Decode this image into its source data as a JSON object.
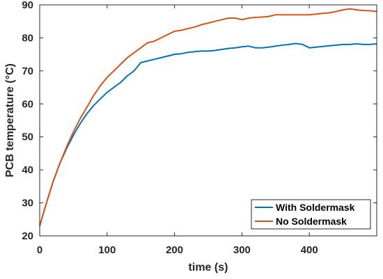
{
  "chart_data": {
    "type": "line",
    "xlabel": "time (s)",
    "ylabel": "PCB temperature (°C)",
    "xlim": [
      0,
      500
    ],
    "ylim": [
      20,
      90
    ],
    "xticks": [
      0,
      100,
      200,
      300,
      400
    ],
    "yticks": [
      20,
      30,
      40,
      50,
      60,
      70,
      80,
      90
    ],
    "grid": false,
    "legend_position": "bottom-right",
    "series": [
      {
        "name": "With Soldermask",
        "color": "#0072BD",
        "x": [
          0,
          10,
          20,
          30,
          40,
          50,
          60,
          70,
          80,
          90,
          100,
          110,
          120,
          130,
          140,
          150,
          160,
          170,
          180,
          190,
          200,
          210,
          220,
          230,
          240,
          250,
          260,
          270,
          280,
          290,
          300,
          310,
          320,
          330,
          340,
          350,
          360,
          370,
          380,
          390,
          400,
          410,
          420,
          430,
          440,
          450,
          460,
          470,
          480,
          490,
          500
        ],
        "values": [
          23.0,
          30.0,
          36.5,
          42.0,
          46.5,
          50.5,
          54.0,
          57.0,
          59.5,
          61.5,
          63.5,
          65.0,
          66.5,
          68.5,
          70.0,
          72.5,
          73.0,
          73.5,
          74.0,
          74.5,
          75.0,
          75.2,
          75.6,
          75.8,
          76.0,
          76.0,
          76.2,
          76.5,
          76.8,
          77.0,
          77.3,
          77.5,
          77.0,
          77.0,
          77.2,
          77.5,
          77.8,
          78.0,
          78.3,
          78.0,
          77.0,
          77.2,
          77.4,
          77.6,
          77.8,
          78.0,
          78.0,
          78.2,
          78.0,
          78.0,
          78.2
        ]
      },
      {
        "name": "No Soldermask",
        "color": "#D95319",
        "x": [
          0,
          10,
          20,
          30,
          40,
          50,
          60,
          70,
          80,
          90,
          100,
          110,
          120,
          130,
          140,
          150,
          160,
          170,
          180,
          190,
          200,
          210,
          220,
          230,
          240,
          250,
          260,
          270,
          280,
          290,
          300,
          310,
          320,
          330,
          340,
          350,
          360,
          370,
          380,
          390,
          400,
          410,
          420,
          430,
          440,
          450,
          460,
          470,
          480,
          490,
          500
        ],
        "values": [
          23.0,
          30.0,
          36.5,
          42.0,
          47.0,
          51.5,
          55.5,
          59.0,
          62.5,
          65.5,
          68.0,
          70.0,
          72.0,
          74.0,
          75.5,
          77.0,
          78.5,
          79.0,
          80.0,
          81.0,
          82.0,
          82.3,
          82.8,
          83.3,
          84.0,
          84.5,
          85.0,
          85.5,
          86.0,
          86.0,
          85.5,
          86.0,
          86.2,
          86.3,
          86.5,
          87.0,
          87.0,
          87.0,
          87.0,
          87.0,
          87.0,
          87.2,
          87.4,
          87.6,
          88.0,
          88.5,
          88.8,
          88.5,
          88.3,
          88.2,
          88.0
        ]
      }
    ]
  }
}
